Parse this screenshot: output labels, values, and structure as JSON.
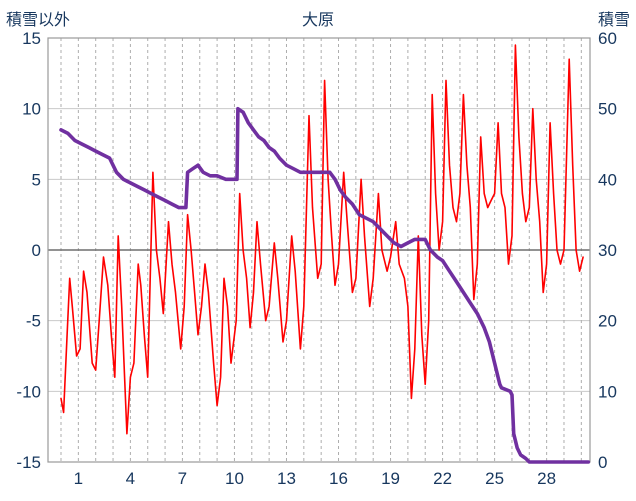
{
  "header": {
    "left_axis_title": "積雪以外",
    "title": "大原",
    "right_axis_title": "積雪"
  },
  "colors": {
    "temperature_line": "#FF0000",
    "snow_line": "#7030A0",
    "axis_text": "#17375E",
    "grid_h": "#C9C9C9",
    "grid_v": "#ADADAD",
    "zero_line": "#6E6E6E",
    "plot_border": "#9A9A9A",
    "plot_bg": "#FFFFFF"
  },
  "chart_data": {
    "type": "line",
    "title": "大原",
    "station": "大原",
    "x_tick_labels": [
      1,
      4,
      7,
      10,
      13,
      16,
      19,
      22,
      25,
      28
    ],
    "x_range": [
      -0.75,
      30.5
    ],
    "x_gridline_days": [
      0,
      1,
      2,
      3,
      4,
      5,
      6,
      7,
      8,
      9,
      10,
      11,
      12,
      13,
      14,
      15,
      16,
      17,
      18,
      19,
      20,
      21,
      22,
      23,
      24,
      25,
      26,
      27,
      28,
      29,
      30
    ],
    "left_axis": {
      "label": "積雪以外",
      "range": [
        -15,
        15
      ],
      "ticks": [
        15,
        10,
        5,
        0,
        -5,
        -10,
        -15
      ]
    },
    "right_axis": {
      "label": "積雪",
      "range": [
        0,
        60
      ],
      "ticks": [
        60,
        50,
        40,
        30,
        20,
        10,
        0
      ]
    },
    "grid": {
      "horizontal_step": 5,
      "vertical": "dashed, every day"
    },
    "legend_position": "none",
    "series": [
      {
        "name": "積雪以外",
        "axis": "left",
        "color": "#FF0000",
        "width": 1.6,
        "points": [
          [
            0,
            -10.5
          ],
          [
            0.15,
            -11.5
          ],
          [
            0.35,
            -6
          ],
          [
            0.5,
            -2
          ],
          [
            0.65,
            -4
          ],
          [
            0.9,
            -7.5
          ],
          [
            1.1,
            -7
          ],
          [
            1.3,
            -1.5
          ],
          [
            1.5,
            -3
          ],
          [
            1.8,
            -8
          ],
          [
            2.0,
            -8.5
          ],
          [
            2.2,
            -5
          ],
          [
            2.45,
            -0.5
          ],
          [
            2.7,
            -2.5
          ],
          [
            2.9,
            -6
          ],
          [
            3.1,
            -9
          ],
          [
            3.3,
            1
          ],
          [
            3.5,
            -4
          ],
          [
            3.8,
            -13
          ],
          [
            4.0,
            -9
          ],
          [
            4.2,
            -8
          ],
          [
            4.45,
            -1
          ],
          [
            4.6,
            -2.5
          ],
          [
            4.8,
            -6
          ],
          [
            5.0,
            -9
          ],
          [
            5.3,
            5.5
          ],
          [
            5.5,
            0
          ],
          [
            5.7,
            -2
          ],
          [
            5.9,
            -4.5
          ],
          [
            6.2,
            2
          ],
          [
            6.4,
            -1
          ],
          [
            6.6,
            -3
          ],
          [
            6.9,
            -7
          ],
          [
            7.1,
            -4
          ],
          [
            7.3,
            2.5
          ],
          [
            7.5,
            0
          ],
          [
            7.7,
            -3
          ],
          [
            7.9,
            -6
          ],
          [
            8.1,
            -4
          ],
          [
            8.3,
            -1
          ],
          [
            8.5,
            -3
          ],
          [
            8.8,
            -8
          ],
          [
            9.0,
            -11
          ],
          [
            9.2,
            -9
          ],
          [
            9.4,
            -2
          ],
          [
            9.6,
            -4
          ],
          [
            9.8,
            -8
          ],
          [
            10.1,
            -5
          ],
          [
            10.3,
            4
          ],
          [
            10.5,
            0
          ],
          [
            10.7,
            -2
          ],
          [
            10.9,
            -5.5
          ],
          [
            11.1,
            -3
          ],
          [
            11.3,
            2
          ],
          [
            11.5,
            -1
          ],
          [
            11.8,
            -5
          ],
          [
            12.0,
            -4
          ],
          [
            12.3,
            0.5
          ],
          [
            12.5,
            -2
          ],
          [
            12.8,
            -6.5
          ],
          [
            13.0,
            -5
          ],
          [
            13.3,
            1
          ],
          [
            13.5,
            -1.5
          ],
          [
            13.8,
            -7
          ],
          [
            14.0,
            -4
          ],
          [
            14.3,
            9.5
          ],
          [
            14.5,
            3
          ],
          [
            14.8,
            -2
          ],
          [
            15.0,
            -1
          ],
          [
            15.2,
            12
          ],
          [
            15.4,
            5
          ],
          [
            15.6,
            1
          ],
          [
            15.8,
            -2.5
          ],
          [
            16.0,
            -1
          ],
          [
            16.3,
            5.5
          ],
          [
            16.5,
            2
          ],
          [
            16.8,
            -3
          ],
          [
            17.0,
            -2
          ],
          [
            17.3,
            5
          ],
          [
            17.5,
            1
          ],
          [
            17.8,
            -4
          ],
          [
            18.0,
            -2
          ],
          [
            18.3,
            4
          ],
          [
            18.5,
            0
          ],
          [
            18.8,
            -1.5
          ],
          [
            19.0,
            -0.5
          ],
          [
            19.3,
            2
          ],
          [
            19.5,
            -1
          ],
          [
            19.8,
            -2
          ],
          [
            20.0,
            -4
          ],
          [
            20.2,
            -10.5
          ],
          [
            20.4,
            -7
          ],
          [
            20.6,
            1
          ],
          [
            20.8,
            -6
          ],
          [
            21.0,
            -9.5
          ],
          [
            21.2,
            -5
          ],
          [
            21.4,
            11
          ],
          [
            21.6,
            4
          ],
          [
            21.8,
            0
          ],
          [
            22.0,
            2
          ],
          [
            22.2,
            12
          ],
          [
            22.4,
            6
          ],
          [
            22.6,
            3
          ],
          [
            22.8,
            2
          ],
          [
            23.0,
            4
          ],
          [
            23.2,
            11
          ],
          [
            23.4,
            6
          ],
          [
            23.6,
            3
          ],
          [
            23.8,
            -3.5
          ],
          [
            24.0,
            -1
          ],
          [
            24.2,
            8
          ],
          [
            24.4,
            4
          ],
          [
            24.6,
            3
          ],
          [
            24.8,
            3.5
          ],
          [
            25.0,
            4
          ],
          [
            25.2,
            9
          ],
          [
            25.4,
            4
          ],
          [
            25.6,
            3
          ],
          [
            25.8,
            -1
          ],
          [
            26.0,
            1
          ],
          [
            26.2,
            14.5
          ],
          [
            26.4,
            8
          ],
          [
            26.6,
            4
          ],
          [
            26.8,
            2
          ],
          [
            27.0,
            3
          ],
          [
            27.2,
            10
          ],
          [
            27.4,
            5
          ],
          [
            27.6,
            2
          ],
          [
            27.8,
            -3
          ],
          [
            28.0,
            -1
          ],
          [
            28.2,
            9
          ],
          [
            28.4,
            4
          ],
          [
            28.6,
            0
          ],
          [
            28.8,
            -1
          ],
          [
            29.0,
            0
          ],
          [
            29.3,
            13.5
          ],
          [
            29.5,
            6
          ],
          [
            29.7,
            0
          ],
          [
            29.9,
            -1.5
          ],
          [
            30.1,
            -0.5
          ]
        ]
      },
      {
        "name": "積雪",
        "axis": "right",
        "color": "#7030A0",
        "width": 3.6,
        "points": [
          [
            0,
            47
          ],
          [
            0.4,
            46.5
          ],
          [
            0.8,
            45.5
          ],
          [
            1.2,
            45
          ],
          [
            1.6,
            44.5
          ],
          [
            2,
            44
          ],
          [
            2.4,
            43.5
          ],
          [
            2.8,
            43
          ],
          [
            3.2,
            41
          ],
          [
            3.6,
            40
          ],
          [
            4,
            39.5
          ],
          [
            4.4,
            39
          ],
          [
            4.8,
            38.5
          ],
          [
            5.2,
            38
          ],
          [
            5.6,
            37.5
          ],
          [
            6,
            37
          ],
          [
            6.4,
            36.5
          ],
          [
            6.8,
            36
          ],
          [
            7.2,
            36
          ],
          [
            7.3,
            41
          ],
          [
            7.6,
            41.5
          ],
          [
            7.9,
            42
          ],
          [
            8.2,
            41
          ],
          [
            8.6,
            40.5
          ],
          [
            9,
            40.5
          ],
          [
            9.5,
            40
          ],
          [
            10.15,
            40
          ],
          [
            10.2,
            50
          ],
          [
            10.5,
            49.5
          ],
          [
            10.8,
            48
          ],
          [
            11.1,
            47
          ],
          [
            11.4,
            46
          ],
          [
            11.7,
            45.5
          ],
          [
            12,
            44.5
          ],
          [
            12.3,
            44
          ],
          [
            12.6,
            43
          ],
          [
            13,
            42
          ],
          [
            13.4,
            41.5
          ],
          [
            13.8,
            41
          ],
          [
            14.5,
            41
          ],
          [
            15.5,
            41
          ],
          [
            15.8,
            40
          ],
          [
            16.1,
            38.5
          ],
          [
            16.4,
            37.5
          ],
          [
            16.8,
            36.5
          ],
          [
            17.2,
            35
          ],
          [
            17.6,
            34.5
          ],
          [
            18,
            34
          ],
          [
            18.4,
            33
          ],
          [
            18.8,
            32
          ],
          [
            19.2,
            31
          ],
          [
            19.6,
            30.5
          ],
          [
            20,
            31
          ],
          [
            20.4,
            31.5
          ],
          [
            21,
            31.5
          ],
          [
            21.3,
            30
          ],
          [
            21.7,
            29
          ],
          [
            22,
            28.5
          ],
          [
            22.4,
            27
          ],
          [
            22.8,
            25.5
          ],
          [
            23.2,
            24
          ],
          [
            23.6,
            22.5
          ],
          [
            24,
            21
          ],
          [
            24.4,
            19
          ],
          [
            24.7,
            17
          ],
          [
            25,
            14
          ],
          [
            25.3,
            11
          ],
          [
            25.4,
            10.5
          ],
          [
            25.9,
            10
          ],
          [
            26,
            9.5
          ],
          [
            26.1,
            4
          ],
          [
            26.3,
            2
          ],
          [
            26.5,
            1
          ],
          [
            26.8,
            0.5
          ],
          [
            27,
            0
          ],
          [
            30.4,
            0
          ]
        ]
      }
    ]
  }
}
